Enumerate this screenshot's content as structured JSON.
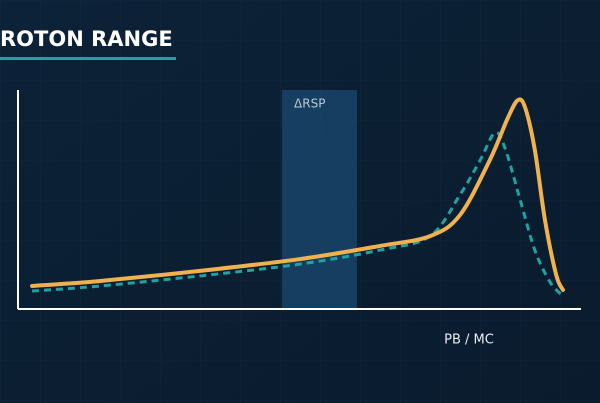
{
  "chart_data": {
    "type": "line",
    "title": "ROTON RANGE",
    "xlabel": "PB / MC",
    "xlim": [
      0,
      100
    ],
    "ylim": [
      0,
      100
    ],
    "band": {
      "label": "ΔRSP",
      "x": [
        46.9,
        60.2
      ],
      "color": "#1b4a70"
    },
    "series": [
      {
        "color": "#f0b24e",
        "line_style": "solid",
        "x": [
          2.5,
          14.6,
          32.3,
          50.1,
          64.3,
          73.2,
          78.5,
          83.8,
          87.0,
          88.8,
          90.1,
          91.8,
          93.6,
          95.6,
          96.8
        ],
        "values": [
          10.5,
          12.8,
          17.4,
          22.8,
          28.8,
          33.3,
          42.9,
          68.0,
          87.2,
          95.4,
          91.8,
          72.6,
          40.6,
          15.5,
          8.7
        ]
      },
      {
        "color": "#1fa3a0",
        "line_style": "dashed",
        "x": [
          2.5,
          14.6,
          32.3,
          50.1,
          64.3,
          73.2,
          78.5,
          82.1,
          84.7,
          86.5,
          89.2,
          91.8,
          94.5,
          96.8
        ],
        "values": [
          8.2,
          10.5,
          15.1,
          20.5,
          26.9,
          33.3,
          52.1,
          68.0,
          80.4,
          73.5,
          49.8,
          26.9,
          12.3,
          5.9
        ]
      }
    ]
  }
}
